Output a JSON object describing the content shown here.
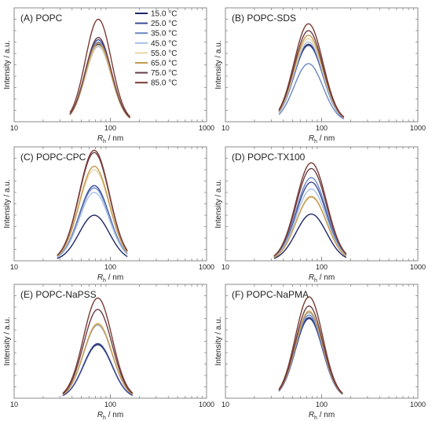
{
  "legend": {
    "entries": [
      "15.0 °C",
      "25.0 °C",
      "35.0 °C",
      "45.0 °C",
      "55.0 °C",
      "65.0 °C",
      "75.0 °C",
      "85.0 °C"
    ],
    "colors": [
      "#1f2566",
      "#3c4c98",
      "#6b87c4",
      "#a6c0e4",
      "#e9d5a2",
      "#c49a50",
      "#6b3e48",
      "#7a3b33"
    ]
  },
  "chart_data": [
    {
      "type": "line",
      "panel": "A",
      "title": "(A) POPC",
      "xlabel_main": "R",
      "xlabel_sub": "h",
      "xlabel_unit": " / nm",
      "ylabel": "Intensity / a.u.",
      "x_scale": "log",
      "xlim": [
        10,
        1000
      ],
      "ylim": [
        0,
        1.0
      ],
      "x_ticks": [
        10,
        100,
        1000
      ],
      "x_tick_labels": [
        "10",
        "100",
        "1000"
      ],
      "series_shape": {
        "x_start": 38,
        "x_end": 160
      },
      "series": [
        {
          "label_index": 0,
          "peak_x": 75,
          "peak_y": 0.68
        },
        {
          "label_index": 1,
          "peak_x": 75,
          "peak_y": 0.72
        },
        {
          "label_index": 2,
          "peak_x": 75,
          "peak_y": 0.7
        },
        {
          "label_index": 3,
          "peak_x": 75,
          "peak_y": 0.66
        },
        {
          "label_index": 4,
          "peak_x": 75,
          "peak_y": 0.67
        },
        {
          "label_index": 5,
          "peak_x": 75,
          "peak_y": 0.69
        },
        {
          "label_index": 6,
          "peak_x": 75,
          "peak_y": 0.74
        },
        {
          "label_index": 7,
          "peak_x": 75,
          "peak_y": 0.9
        }
      ]
    },
    {
      "type": "line",
      "panel": "B",
      "title": "(B) POPC-SDS",
      "xlabel_main": "R",
      "xlabel_sub": "h",
      "xlabel_unit": " / nm",
      "ylabel": "Intensity / a.u.",
      "x_scale": "log",
      "xlim": [
        10,
        1000
      ],
      "ylim": [
        0,
        1.0
      ],
      "x_ticks": [
        10,
        100,
        1000
      ],
      "x_tick_labels": [
        "10",
        "100",
        "1000"
      ],
      "series_shape": {
        "x_start": 36,
        "x_end": 170
      },
      "series": [
        {
          "label_index": 0,
          "peak_x": 73,
          "peak_y": 0.68
        },
        {
          "label_index": 1,
          "peak_x": 73,
          "peak_y": 0.67
        },
        {
          "label_index": 2,
          "peak_x": 73,
          "peak_y": 0.51
        },
        {
          "label_index": 3,
          "peak_x": 73,
          "peak_y": 0.7
        },
        {
          "label_index": 4,
          "peak_x": 73,
          "peak_y": 0.73
        },
        {
          "label_index": 5,
          "peak_x": 73,
          "peak_y": 0.76
        },
        {
          "label_index": 6,
          "peak_x": 73,
          "peak_y": 0.8
        },
        {
          "label_index": 7,
          "peak_x": 73,
          "peak_y": 0.86
        }
      ]
    },
    {
      "type": "line",
      "panel": "C",
      "title": "(C) POPC-CPC",
      "xlabel_main": "R",
      "xlabel_sub": "h",
      "xlabel_unit": " / nm",
      "ylabel": "Intensity / a.u.",
      "x_scale": "log",
      "xlim": [
        10,
        1000
      ],
      "ylim": [
        0,
        1.0
      ],
      "x_ticks": [
        10,
        100,
        1000
      ],
      "x_tick_labels": [
        "10",
        "100",
        "1000"
      ],
      "series_shape": {
        "x_start": 28,
        "x_end": 150
      },
      "series": [
        {
          "label_index": 0,
          "peak_x": 68,
          "peak_y": 0.4
        },
        {
          "label_index": 1,
          "peak_x": 68,
          "peak_y": 0.66
        },
        {
          "label_index": 2,
          "peak_x": 68,
          "peak_y": 0.64
        },
        {
          "label_index": 3,
          "peak_x": 68,
          "peak_y": 0.6
        },
        {
          "label_index": 4,
          "peak_x": 68,
          "peak_y": 0.8
        },
        {
          "label_index": 5,
          "peak_x": 68,
          "peak_y": 0.83
        },
        {
          "label_index": 6,
          "peak_x": 68,
          "peak_y": 0.95
        },
        {
          "label_index": 7,
          "peak_x": 68,
          "peak_y": 0.97
        }
      ]
    },
    {
      "type": "line",
      "panel": "D",
      "title": "(D) POPC-TX100",
      "xlabel_main": "R",
      "xlabel_sub": "h",
      "xlabel_unit": " / nm",
      "ylabel": "Intensity / a.u.",
      "x_scale": "log",
      "xlim": [
        10,
        1000
      ],
      "ylim": [
        0,
        1.0
      ],
      "x_ticks": [
        10,
        100,
        1000
      ],
      "x_tick_labels": [
        "10",
        "100",
        "1000"
      ],
      "series_shape": {
        "x_start": 32,
        "x_end": 180
      },
      "series": [
        {
          "label_index": 0,
          "peak_x": 78,
          "peak_y": 0.41
        },
        {
          "label_index": 1,
          "peak_x": 78,
          "peak_y": 0.69
        },
        {
          "label_index": 2,
          "peak_x": 78,
          "peak_y": 0.73
        },
        {
          "label_index": 3,
          "peak_x": 78,
          "peak_y": 0.63
        },
        {
          "label_index": 4,
          "peak_x": 78,
          "peak_y": 0.57
        },
        {
          "label_index": 5,
          "peak_x": 78,
          "peak_y": 0.56
        },
        {
          "label_index": 6,
          "peak_x": 78,
          "peak_y": 0.81
        },
        {
          "label_index": 7,
          "peak_x": 78,
          "peak_y": 0.86
        }
      ]
    },
    {
      "type": "line",
      "panel": "E",
      "title": "(E) POPC-NaPSS",
      "xlabel_main": "R",
      "xlabel_sub": "h",
      "xlabel_unit": " / nm",
      "ylabel": "Intensity / a.u.",
      "x_scale": "log",
      "xlim": [
        10,
        1000
      ],
      "ylim": [
        0,
        1.0
      ],
      "x_ticks": [
        10,
        100,
        1000
      ],
      "x_tick_labels": [
        "10",
        "100",
        "1000"
      ],
      "series_shape": {
        "x_start": 32,
        "x_end": 170
      },
      "series": [
        {
          "label_index": 0,
          "peak_x": 74,
          "peak_y": 0.47
        },
        {
          "label_index": 1,
          "peak_x": 74,
          "peak_y": 0.48
        },
        {
          "label_index": 2,
          "peak_x": 74,
          "peak_y": 0.65
        },
        {
          "label_index": 3,
          "peak_x": 74,
          "peak_y": 0.64
        },
        {
          "label_index": 4,
          "peak_x": 74,
          "peak_y": 0.66
        },
        {
          "label_index": 5,
          "peak_x": 74,
          "peak_y": 0.65
        },
        {
          "label_index": 6,
          "peak_x": 74,
          "peak_y": 0.78
        },
        {
          "label_index": 7,
          "peak_x": 74,
          "peak_y": 0.88
        }
      ]
    },
    {
      "type": "line",
      "panel": "F",
      "title": "(F) POPC-NaPMA",
      "xlabel_main": "R",
      "xlabel_sub": "h",
      "xlabel_unit": " / nm",
      "ylabel": "Intensity / a.u.",
      "x_scale": "log",
      "xlim": [
        10,
        1000
      ],
      "ylim": [
        0,
        1.0
      ],
      "x_ticks": [
        10,
        100,
        1000
      ],
      "x_tick_labels": [
        "10",
        "100",
        "1000"
      ],
      "series_shape": {
        "x_start": 36,
        "x_end": 165
      },
      "series": [
        {
          "label_index": 0,
          "peak_x": 74,
          "peak_y": 0.7
        },
        {
          "label_index": 1,
          "peak_x": 74,
          "peak_y": 0.71
        },
        {
          "label_index": 2,
          "peak_x": 74,
          "peak_y": 0.73
        },
        {
          "label_index": 3,
          "peak_x": 74,
          "peak_y": 0.75
        },
        {
          "label_index": 4,
          "peak_x": 74,
          "peak_y": 0.77
        },
        {
          "label_index": 5,
          "peak_x": 74,
          "peak_y": 0.76
        },
        {
          "label_index": 6,
          "peak_x": 74,
          "peak_y": 0.81
        },
        {
          "label_index": 7,
          "peak_x": 74,
          "peak_y": 0.89
        }
      ]
    }
  ]
}
